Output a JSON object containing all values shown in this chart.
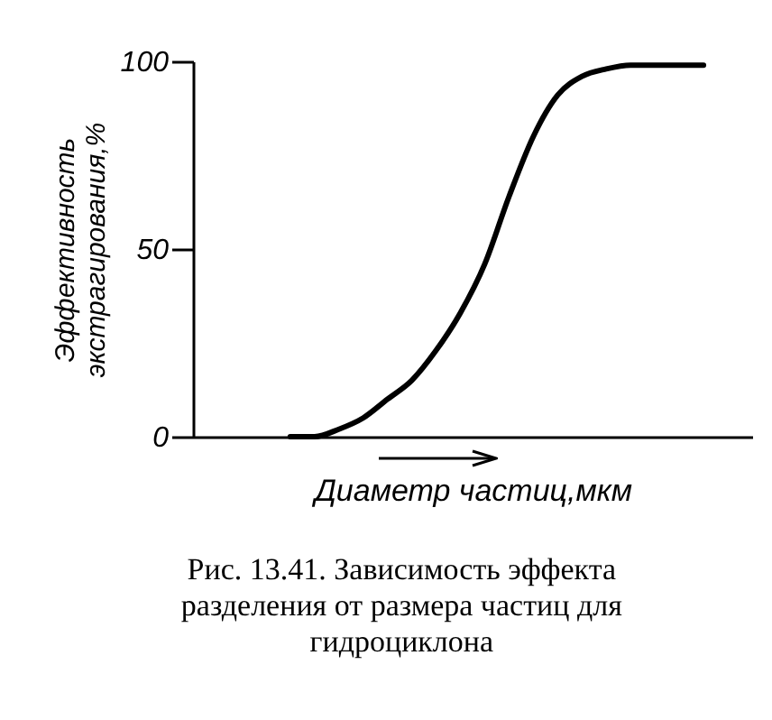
{
  "chart_data": {
    "type": "line",
    "ylabel": "Эффективность экстрагирования,%",
    "xlabel": "Диаметр частиц,мкм",
    "annotations": [
      "Рис. 13.41. Зависимость эффекта разделения от размера частиц для гидроциклона"
    ],
    "categories": [
      null,
      null,
      null,
      null,
      null,
      null,
      null,
      null,
      null,
      null,
      null,
      null,
      null,
      null,
      null,
      null,
      null,
      null,
      null,
      null,
      null,
      null,
      null,
      null
    ],
    "series": [
      {
        "color": "#000000",
        "values": [
          null,
          null,
          null,
          null,
          0,
          0,
          2,
          5,
          10,
          15,
          23,
          33,
          46,
          64,
          80,
          91,
          96,
          98,
          99,
          99,
          99,
          99,
          null,
          null
        ]
      }
    ],
    "ylim": [
      0,
      100
    ],
    "yticks": [
      0,
      50,
      100
    ],
    "tick_labels": "y",
    "grid": false,
    "marker": "none",
    "line_style": "solid"
  }
}
